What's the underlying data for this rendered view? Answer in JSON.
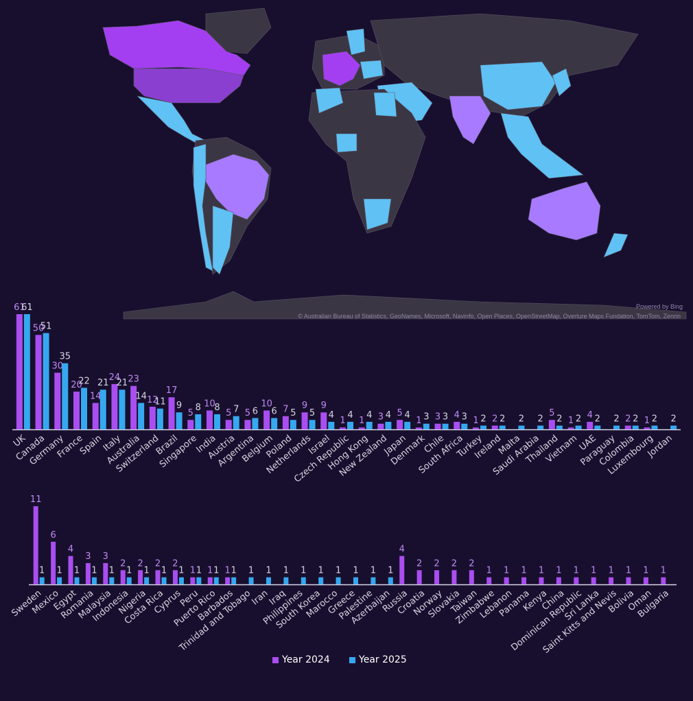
{
  "map": {
    "powered_by": "Powered by Bing",
    "copyright": "© Australian Bureau of Statistics, GeoNames, Microsoft, Navinfo, Open Places, OpenStreetMap, Overture Maps Fundation, TomTom, Zenrin",
    "colors": {
      "ocean": "#180f2e",
      "land": "#3b3644",
      "high": "#8f47d8",
      "mid": "#a77aff",
      "low": "#5fc1f4",
      "purple": "#a33ff0"
    }
  },
  "legend": {
    "y2024": "Year 2024",
    "y2025": "Year 2025"
  },
  "colors": {
    "y2024": "#a94ef0",
    "y2025": "#36a8f0",
    "label2024": "#c08af5",
    "label2025": "#d8d6e4",
    "axis": "#d8d6e4"
  },
  "chart_data": [
    {
      "type": "bar",
      "categories": [
        "UK",
        "Canada",
        "Germany",
        "France",
        "Spain",
        "Italy",
        "Australia",
        "Switzerland",
        "Brazil",
        "Singapore",
        "India",
        "Austria",
        "Argentina",
        "Belgium",
        "Poland",
        "Netherlands",
        "Israel",
        "Czech Republic",
        "Hong Kong",
        "New Zealand",
        "Japan",
        "Denmark",
        "Chile",
        "South Africa",
        "Turkey",
        "Ireland",
        "Malta",
        "Saudi Arabia",
        "Thailand",
        "Vietnam",
        "UAE",
        "Paraguay",
        "Colombia",
        "Luxembourg",
        "Jordan"
      ],
      "series": [
        {
          "name": "Year 2024",
          "values": [
            61,
            50,
            30,
            20,
            14,
            24,
            23,
            12,
            17,
            5,
            10,
            5,
            5,
            10,
            7,
            9,
            9,
            1,
            1,
            3,
            5,
            1,
            3,
            4,
            1,
            2,
            null,
            null,
            5,
            1,
            4,
            null,
            2,
            1,
            null
          ]
        },
        {
          "name": "Year 2025",
          "values": [
            61,
            51,
            35,
            22,
            21,
            21,
            14,
            11,
            9,
            8,
            8,
            7,
            6,
            6,
            5,
            5,
            4,
            4,
            4,
            4,
            4,
            3,
            3,
            3,
            2,
            2,
            2,
            2,
            2,
            2,
            2,
            2,
            2,
            2,
            2
          ]
        }
      ],
      "ylim": [
        0,
        61
      ]
    },
    {
      "type": "bar",
      "categories": [
        "Sweden",
        "Mexico",
        "Egypt",
        "Romania",
        "Malaysia",
        "Indonesia",
        "Nigeria",
        "Costa Rica",
        "Cyprus",
        "Peru",
        "Puerto Rico",
        "Barbados",
        "Trinidad and Tobago",
        "Iran",
        "Iraq",
        "Philippines",
        "South Korea",
        "Marocco",
        "Greece",
        "Palestine",
        "Azerbaijan",
        "Russia",
        "Croatia",
        "Norway",
        "Slovakia",
        "Taiwan",
        "Zimbabwe",
        "Lebanon",
        "Panama",
        "Kenya",
        "China",
        "Dominican Republic",
        "Sri Lanka",
        "Saint Kitts and Nevis",
        "Bolivia",
        "Oman",
        "Bulgaria"
      ],
      "series": [
        {
          "name": "Year 2024",
          "values": [
            11,
            6,
            4,
            3,
            3,
            2,
            2,
            2,
            2,
            1,
            1,
            1,
            null,
            null,
            null,
            null,
            null,
            null,
            null,
            null,
            null,
            4,
            2,
            2,
            2,
            2,
            1,
            1,
            1,
            1,
            1,
            1,
            1,
            1,
            1,
            1,
            1
          ]
        },
        {
          "name": "Year 2025",
          "values": [
            1,
            1,
            1,
            1,
            1,
            1,
            1,
            1,
            1,
            1,
            1,
            1,
            1,
            1,
            1,
            1,
            1,
            1,
            1,
            1,
            1,
            null,
            null,
            null,
            null,
            null,
            null,
            null,
            null,
            null,
            null,
            null,
            null,
            null,
            null,
            null,
            null
          ]
        }
      ],
      "ylim": [
        0,
        11
      ]
    }
  ]
}
